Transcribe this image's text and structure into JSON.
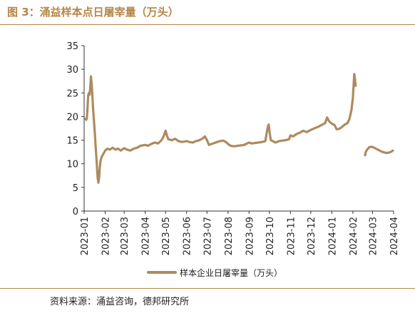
{
  "figure_title": "图 3：涌益样本点日屠宰量（万头）",
  "source": "资料来源：涌益咨询，德邦研究所",
  "colors": {
    "accent": "#b58546",
    "series": "#ae8a5f"
  },
  "chart_data": {
    "type": "line",
    "title": "",
    "xlabel": "",
    "ylabel": "",
    "ylim": [
      0,
      35
    ],
    "yticks": [
      0,
      5,
      10,
      15,
      20,
      25,
      30,
      35
    ],
    "xlim": [
      "2023-01-01",
      "2024-04-01"
    ],
    "xticks": [
      "2023-01",
      "2023-02",
      "2023-03",
      "2023-04",
      "2023-05",
      "2023-06",
      "2023-07",
      "2023-08",
      "2023-09",
      "2023-10",
      "2023-11",
      "2023-12",
      "2024-01",
      "2024-02",
      "2024-03",
      "2024-04"
    ],
    "grid": false,
    "legend": "bottom",
    "series": [
      {
        "name": "样本企业日屠宰量（万头）",
        "segments": [
          [
            [
              "2023-01-03",
              19.5
            ],
            [
              "2023-01-04",
              19.3
            ],
            [
              "2023-01-05",
              19.6
            ],
            [
              "2023-01-06",
              22.0
            ],
            [
              "2023-01-07",
              24.5
            ],
            [
              "2023-01-08",
              25.0
            ],
            [
              "2023-01-09",
              24.6
            ],
            [
              "2023-01-10",
              26.0
            ],
            [
              "2023-01-11",
              28.5
            ],
            [
              "2023-01-12",
              27.0
            ],
            [
              "2023-01-13",
              25.0
            ],
            [
              "2023-01-14",
              22.0
            ],
            [
              "2023-01-15",
              20.0
            ],
            [
              "2023-01-16",
              18.0
            ],
            [
              "2023-01-17",
              16.0
            ],
            [
              "2023-01-18",
              13.5
            ],
            [
              "2023-01-19",
              11.5
            ],
            [
              "2023-01-20",
              9.0
            ],
            [
              "2023-01-21",
              7.0
            ],
            [
              "2023-01-22",
              6.0
            ],
            [
              "2023-01-23",
              7.0
            ],
            [
              "2023-01-24",
              9.0
            ],
            [
              "2023-01-25",
              10.5
            ],
            [
              "2023-01-27",
              11.5
            ],
            [
              "2023-01-29",
              12.0
            ],
            [
              "2023-02-01",
              12.8
            ],
            [
              "2023-02-04",
              13.2
            ],
            [
              "2023-02-08",
              13.0
            ],
            [
              "2023-02-12",
              13.4
            ],
            [
              "2023-02-16",
              13.0
            ],
            [
              "2023-02-20",
              13.2
            ],
            [
              "2023-02-24",
              12.8
            ],
            [
              "2023-03-01",
              13.3
            ],
            [
              "2023-03-05",
              13.0
            ],
            [
              "2023-03-10",
              12.8
            ],
            [
              "2023-03-15",
              13.2
            ],
            [
              "2023-03-20",
              13.4
            ],
            [
              "2023-03-25",
              13.8
            ],
            [
              "2023-04-01",
              14.0
            ],
            [
              "2023-04-05",
              13.8
            ],
            [
              "2023-04-10",
              14.2
            ],
            [
              "2023-04-15",
              14.5
            ],
            [
              "2023-04-20",
              14.3
            ],
            [
              "2023-04-25",
              15.0
            ],
            [
              "2023-04-28",
              15.8
            ],
            [
              "2023-05-01",
              17.0
            ],
            [
              "2023-05-03",
              16.0
            ],
            [
              "2023-05-05",
              15.2
            ],
            [
              "2023-05-10",
              15.0
            ],
            [
              "2023-05-15",
              15.3
            ],
            [
              "2023-05-20",
              14.8
            ],
            [
              "2023-05-25",
              14.6
            ],
            [
              "2023-06-01",
              14.8
            ],
            [
              "2023-06-05",
              14.6
            ],
            [
              "2023-06-10",
              14.5
            ],
            [
              "2023-06-15",
              14.8
            ],
            [
              "2023-06-20",
              15.0
            ],
            [
              "2023-06-25",
              15.4
            ],
            [
              "2023-06-28",
              15.8
            ],
            [
              "2023-07-01",
              15.0
            ],
            [
              "2023-07-04",
              14.0
            ],
            [
              "2023-07-08",
              14.2
            ],
            [
              "2023-07-12",
              14.4
            ],
            [
              "2023-07-16",
              14.6
            ],
            [
              "2023-07-20",
              14.8
            ],
            [
              "2023-07-25",
              14.9
            ],
            [
              "2023-07-29",
              14.6
            ],
            [
              "2023-08-01",
              14.2
            ],
            [
              "2023-08-05",
              13.8
            ],
            [
              "2023-08-10",
              13.7
            ],
            [
              "2023-08-15",
              13.8
            ],
            [
              "2023-08-20",
              13.9
            ],
            [
              "2023-08-25",
              14.0
            ],
            [
              "2023-08-29",
              14.3
            ],
            [
              "2023-09-01",
              14.5
            ],
            [
              "2023-09-05",
              14.3
            ],
            [
              "2023-09-10",
              14.4
            ],
            [
              "2023-09-15",
              14.5
            ],
            [
              "2023-09-20",
              14.6
            ],
            [
              "2023-09-25",
              14.8
            ],
            [
              "2023-09-27",
              16.5
            ],
            [
              "2023-09-29",
              18.0
            ],
            [
              "2023-09-30",
              18.3
            ],
            [
              "2023-10-01",
              17.0
            ],
            [
              "2023-10-03",
              15.0
            ],
            [
              "2023-10-06",
              14.8
            ],
            [
              "2023-10-10",
              14.5
            ],
            [
              "2023-10-15",
              14.8
            ],
            [
              "2023-10-20",
              14.9
            ],
            [
              "2023-10-25",
              15.0
            ],
            [
              "2023-10-30",
              15.2
            ],
            [
              "2023-11-01",
              16.0
            ],
            [
              "2023-11-05",
              15.8
            ],
            [
              "2023-11-10",
              16.3
            ],
            [
              "2023-11-15",
              16.6
            ],
            [
              "2023-11-20",
              17.0
            ],
            [
              "2023-11-25",
              16.7
            ],
            [
              "2023-11-30",
              17.1
            ],
            [
              "2023-12-03",
              17.3
            ],
            [
              "2023-12-08",
              17.6
            ],
            [
              "2023-12-13",
              17.9
            ],
            [
              "2023-12-18",
              18.3
            ],
            [
              "2023-12-22",
              18.6
            ],
            [
              "2023-12-25",
              19.8
            ],
            [
              "2023-12-28",
              19.0
            ],
            [
              "2024-01-01",
              18.5
            ],
            [
              "2024-01-05",
              18.2
            ],
            [
              "2024-01-08",
              17.3
            ],
            [
              "2024-01-12",
              17.4
            ],
            [
              "2024-01-16",
              17.8
            ],
            [
              "2024-01-20",
              18.3
            ],
            [
              "2024-01-24",
              18.6
            ],
            [
              "2024-01-27",
              19.5
            ],
            [
              "2024-01-30",
              21.5
            ],
            [
              "2024-02-01",
              24.0
            ],
            [
              "2024-02-03",
              29.0
            ],
            [
              "2024-02-04",
              28.0
            ],
            [
              "2024-02-05",
              26.5
            ]
          ],
          [
            [
              "2024-02-19",
              11.8
            ],
            [
              "2024-02-20",
              12.5
            ],
            [
              "2024-02-22",
              13.0
            ],
            [
              "2024-02-25",
              13.5
            ],
            [
              "2024-02-28",
              13.6
            ],
            [
              "2024-03-02",
              13.5
            ],
            [
              "2024-03-06",
              13.2
            ],
            [
              "2024-03-10",
              12.9
            ],
            [
              "2024-03-14",
              12.6
            ],
            [
              "2024-03-18",
              12.4
            ],
            [
              "2024-03-22",
              12.3
            ],
            [
              "2024-03-26",
              12.4
            ],
            [
              "2024-03-29",
              12.6
            ],
            [
              "2024-03-31",
              12.8
            ]
          ]
        ]
      }
    ]
  }
}
